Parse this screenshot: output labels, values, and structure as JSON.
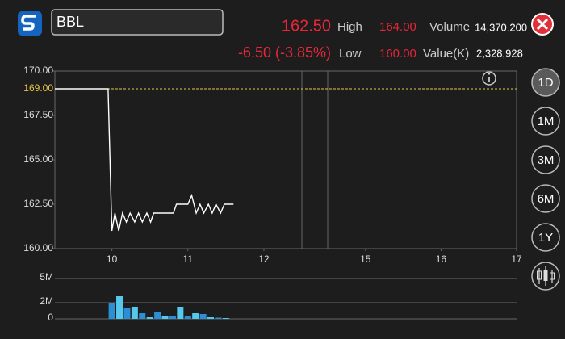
{
  "header": {
    "symbol": "BBL",
    "price": "162.50",
    "change": "-6.50 (-3.85%)",
    "high_label": "High",
    "high": "164.00",
    "low_label": "Low",
    "low": "160.00",
    "volume_label": "Volume",
    "volume": "14,370,200",
    "value_label": "Value(K)",
    "value": "2,328,928"
  },
  "periods": [
    "1D",
    "1M",
    "3M",
    "6M",
    "1Y"
  ],
  "chart_data": [
    {
      "type": "line",
      "color": "#ffffff",
      "x": [
        9.25,
        9.95,
        10,
        10.04,
        10.09,
        10.14,
        10.19,
        10.24,
        10.3,
        10.35,
        10.4,
        10.46,
        10.51,
        10.55,
        10.81,
        10.85,
        11,
        11.05,
        11.11,
        11.16,
        11.21,
        11.27,
        11.32,
        11.37,
        11.43,
        11.48,
        11.6
      ],
      "values": [
        169,
        169,
        161,
        162,
        161,
        162,
        161.5,
        162,
        161.5,
        162,
        161.5,
        162,
        161.5,
        162,
        162,
        162.5,
        162.5,
        163,
        162,
        162.5,
        162,
        162.5,
        162,
        162.5,
        162,
        162.5,
        162.5
      ],
      "xlim": [
        9.25,
        17
      ],
      "xbreak": [
        12.5,
        14.5
      ],
      "xticks": [
        10,
        11,
        12,
        15,
        16,
        17
      ],
      "ylim": [
        160,
        170
      ],
      "yticks": [
        {
          "value": 160,
          "label": "160.00"
        },
        {
          "value": 162.5,
          "label": "162.50"
        },
        {
          "value": 165,
          "label": "165.00"
        },
        {
          "value": 167.5,
          "label": "167.50"
        },
        {
          "value": 170,
          "label": "170.00"
        }
      ],
      "reference": {
        "value": 169,
        "label": "169.00",
        "color": "#e8c547"
      }
    },
    {
      "type": "bar",
      "x": [
        10,
        10.1,
        10.2,
        10.3,
        10.4,
        10.5,
        10.6,
        10.7,
        10.8,
        10.9,
        11,
        11.1,
        11.2,
        11.3,
        11.4,
        11.5
      ],
      "values": [
        2000000,
        2800000,
        1300000,
        1500000,
        700000,
        200000,
        800000,
        400000,
        400000,
        1500000,
        400000,
        700000,
        600000,
        200000,
        150000,
        100000
      ],
      "colors": [
        "#2b8fd6",
        "#55c8ec",
        "#2b8fd6",
        "#55c8ec",
        "#2b8fd6",
        "#55c8ec",
        "#2b8fd6",
        "#55c8ec",
        "#2b8fd6",
        "#55c8ec",
        "#2b8fd6",
        "#55c8ec",
        "#2b8fd6",
        "#55c8ec",
        "#2b8fd6",
        "#55c8ec"
      ],
      "ylim": [
        0,
        5000000
      ],
      "yticks": [
        {
          "value": 0,
          "label": "0"
        },
        {
          "value": 2000000,
          "label": "2M"
        },
        {
          "value": 5000000,
          "label": "5M"
        }
      ]
    }
  ]
}
